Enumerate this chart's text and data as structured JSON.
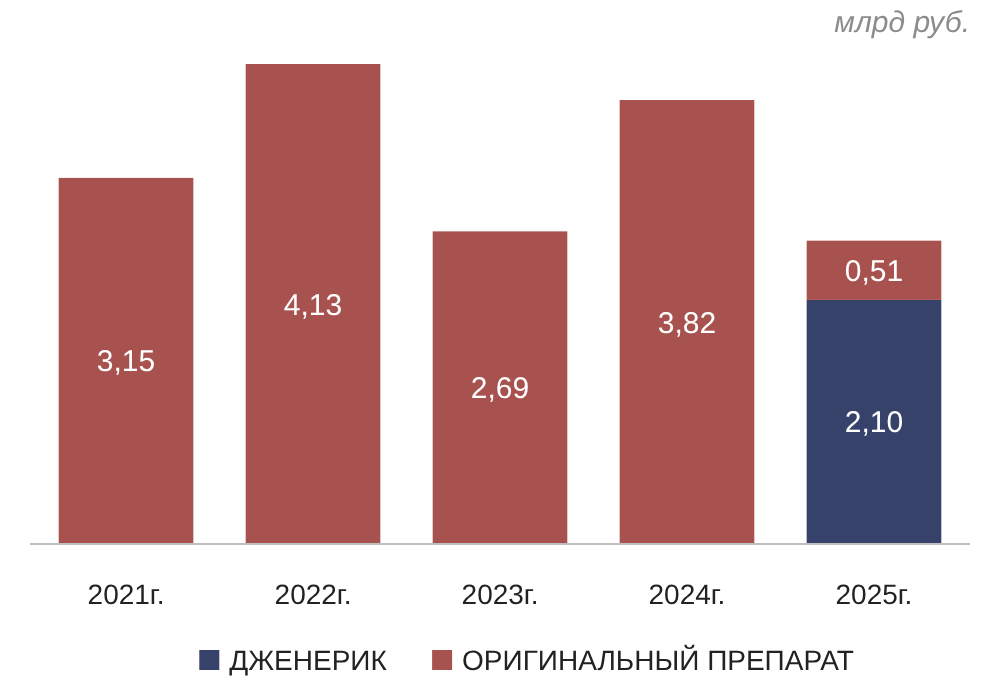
{
  "chart_data": {
    "type": "bar",
    "stacked": true,
    "ylabel": "млрд руб.",
    "categories": [
      "2021г.",
      "2022г.",
      "2023г.",
      "2024г.",
      "2025г."
    ],
    "series": [
      {
        "name": "ДЖЕНЕРИК",
        "color": "#36426a",
        "values": [
          null,
          null,
          null,
          null,
          2.1
        ],
        "value_labels": [
          null,
          null,
          null,
          null,
          "2,10"
        ]
      },
      {
        "name": "ОРИГИНАЛЬНЫЙ ПРЕПАРАТ",
        "color": "#a8524f",
        "values": [
          3.15,
          4.13,
          2.69,
          3.82,
          0.51
        ],
        "value_labels": [
          "3,15",
          "4,13",
          "2,69",
          "3,82",
          "0,51"
        ]
      }
    ],
    "legend": "bottom"
  }
}
